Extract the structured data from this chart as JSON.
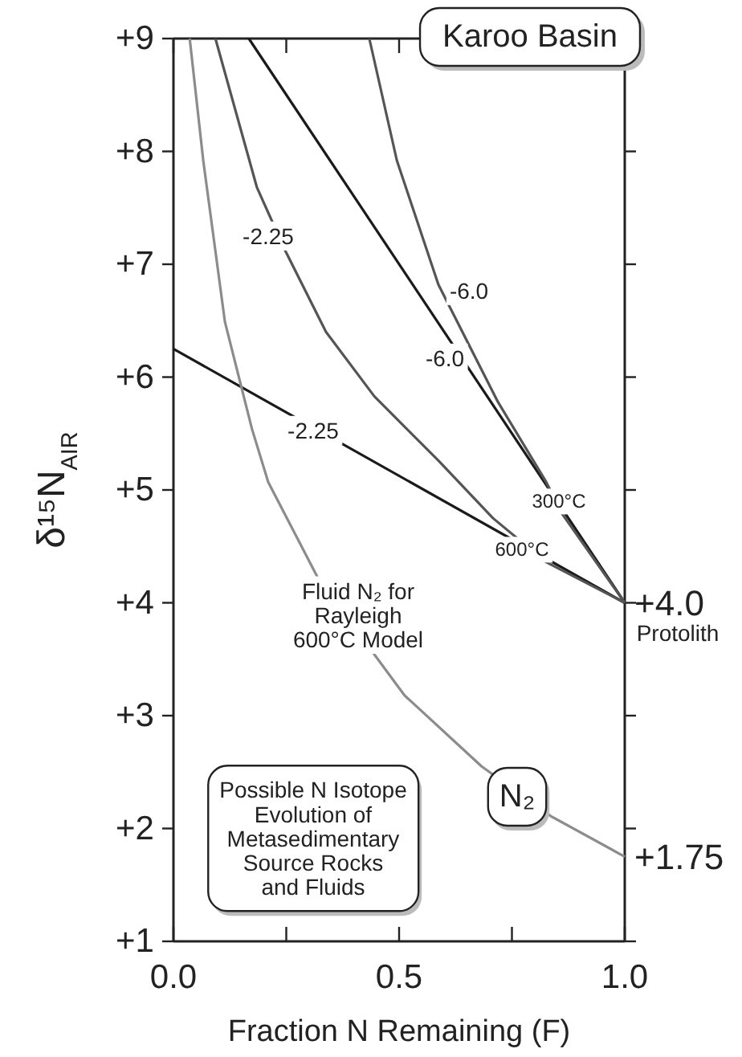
{
  "chart_data": {
    "type": "line",
    "title": "Karoo Basin",
    "xlabel": "Fraction N Remaining (F)",
    "ylabel": "δ¹⁵N$_{AIR}$",
    "xlim": [
      0,
      1
    ],
    "ylim": [
      1,
      9
    ],
    "xticks": [
      {
        "value": 0,
        "label": "0.0"
      },
      {
        "value": 0.25,
        "label": null
      },
      {
        "value": 0.5,
        "label": "0.5"
      },
      {
        "value": 0.75,
        "label": null
      },
      {
        "value": 1,
        "label": "1.0"
      }
    ],
    "yticks": [
      {
        "value": 1,
        "label": "+1"
      },
      {
        "value": 2,
        "label": "+2"
      },
      {
        "value": 3,
        "label": "+3"
      },
      {
        "value": 4,
        "label": "+4"
      },
      {
        "value": 5,
        "label": "+5"
      },
      {
        "value": 6,
        "label": "+6"
      },
      {
        "value": 7,
        "label": "+7"
      },
      {
        "value": 8,
        "label": "+8"
      },
      {
        "value": 9,
        "label": "+9"
      }
    ],
    "grid": false,
    "marker": "none",
    "line_style": "solid",
    "series": [
      {
        "color": "#1a1a1a",
        "x": [
          0,
          1
        ],
        "values": [
          6.25,
          4
        ]
      },
      {
        "color": "#1a1a1a",
        "x": [
          0.167,
          1
        ],
        "values": [
          9,
          4
        ]
      },
      {
        "color": "#555555",
        "x": [
          0.093,
          0.185,
          0.249,
          0.338,
          0.445,
          0.587,
          0.708,
          0.826,
          1
        ],
        "values": [
          9,
          7.68,
          7.11,
          6.4,
          5.83,
          5.26,
          4.75,
          4.36,
          4
        ]
      },
      {
        "color": "#555555",
        "x": [
          0.434,
          0.495,
          0.587,
          0.719,
          0.826,
          0.861,
          1
        ],
        "values": [
          9,
          7.92,
          6.82,
          5.78,
          5.07,
          4.79,
          4
        ]
      },
      {
        "color": "#8c8c8c",
        "x": [
          0.036,
          0.066,
          0.114,
          0.174,
          0.21,
          0.32,
          0.512,
          0.683,
          0.836,
          1
        ],
        "values": [
          9,
          7.92,
          6.49,
          5.54,
          5.07,
          4.22,
          3.18,
          2.55,
          2.11,
          1.75
        ]
      }
    ],
    "annotations": [
      "-2.25",
      "-6.0",
      "-6.0",
      "-2.25",
      "300°C",
      "600°C",
      "Fluid N₂ for\nRayleigh\n600°C Model",
      "N₂",
      "Possible N Isotope\nEvolution of\nMetasedimentary\nSource Rocks\nand Fluids",
      {
        "text": "+4.0",
        "x": 1,
        "y": 4
      },
      "Protolith",
      {
        "text": "+1.75",
        "x": 1,
        "y": 1.75
      }
    ]
  }
}
